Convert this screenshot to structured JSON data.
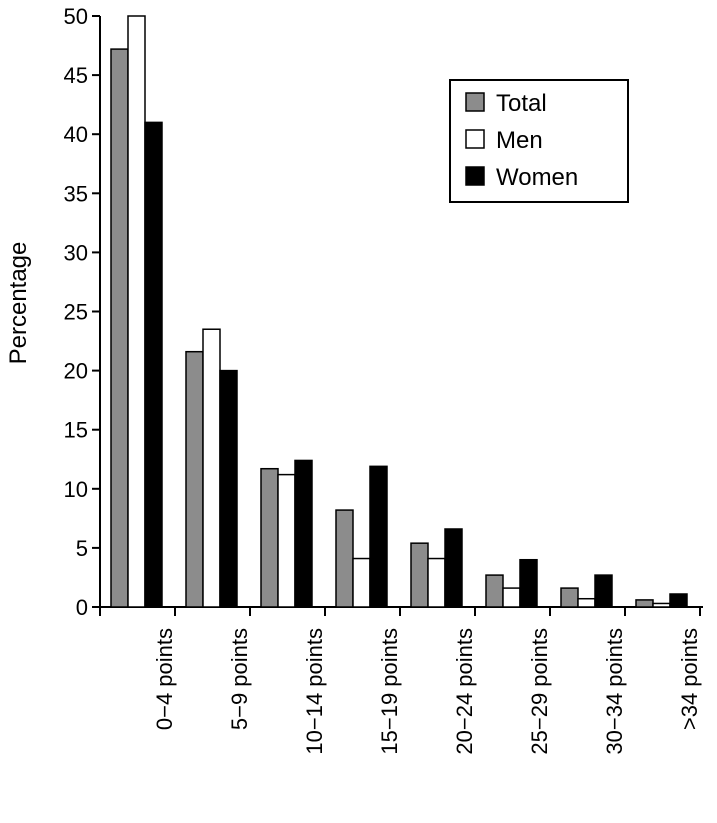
{
  "chart_data": {
    "type": "bar",
    "title": "",
    "xlabel": "",
    "ylabel": "Percentage",
    "ylim": [
      0,
      50
    ],
    "yticks": [
      0,
      5,
      10,
      15,
      20,
      25,
      30,
      35,
      40,
      45,
      50
    ],
    "categories": [
      "0−4 points",
      "5−9 points",
      "10−14 points",
      "15−19 points",
      "20−24 points",
      "25−29 points",
      "30−34 points",
      ">34 points"
    ],
    "series": [
      {
        "name": "Total",
        "color": "#8c8c8c",
        "values": [
          47.2,
          21.6,
          11.7,
          8.2,
          5.4,
          2.7,
          1.6,
          0.6
        ]
      },
      {
        "name": "Men",
        "color": "#ffffff",
        "values": [
          50.0,
          23.5,
          11.2,
          4.1,
          4.1,
          1.6,
          0.7,
          0.3
        ]
      },
      {
        "name": "Women",
        "color": "#000000",
        "values": [
          41.0,
          20.0,
          12.4,
          11.9,
          6.6,
          4.0,
          2.7,
          1.1
        ]
      }
    ],
    "legend_position": "top-right",
    "grid": false
  }
}
